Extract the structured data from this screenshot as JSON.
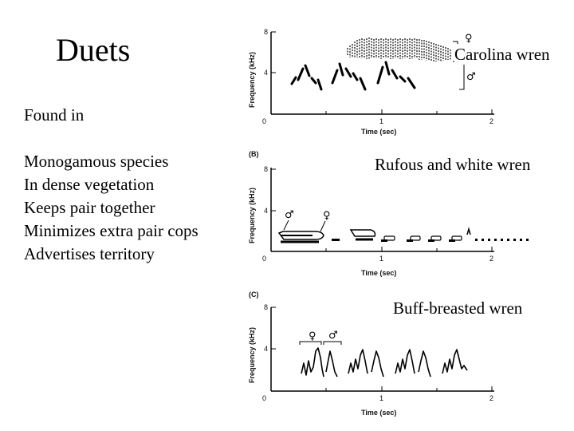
{
  "slide": {
    "title": "Duets",
    "found_in": "Found in",
    "bullets": [
      "Monogamous species",
      "In dense vegetation",
      "Keeps pair together",
      "Minimizes extra pair cops",
      "Advertises territory"
    ]
  },
  "panels": [
    {
      "letter": "",
      "species": "Carolina wren",
      "ylabel": "Frequency (kHz)",
      "xlabel": "Time (sec)",
      "yticks": [
        "0",
        "4",
        "8"
      ],
      "xticks": [
        "0",
        "1",
        "2"
      ],
      "markers": [
        "female-symbol",
        "male-symbol"
      ]
    },
    {
      "letter": "(B)",
      "species": "Rufous and white wren",
      "ylabel": "Frequency (kHz)",
      "xlabel": "Time (sec)",
      "yticks": [
        "0",
        "4",
        "8"
      ],
      "xticks": [
        "0",
        "1",
        "2"
      ],
      "markers": [
        "male-symbol",
        "female-symbol"
      ]
    },
    {
      "letter": "(C)",
      "species": "Buff-breasted wren",
      "ylabel": "Frequency (kHz)",
      "xlabel": "Time (sec)",
      "yticks": [
        "0",
        "4",
        "8"
      ],
      "xticks": [
        "0",
        "1",
        "2"
      ],
      "markers": [
        "female-symbol",
        "male-symbol"
      ]
    }
  ],
  "symbols": {
    "female": "♀",
    "male": "♂"
  }
}
